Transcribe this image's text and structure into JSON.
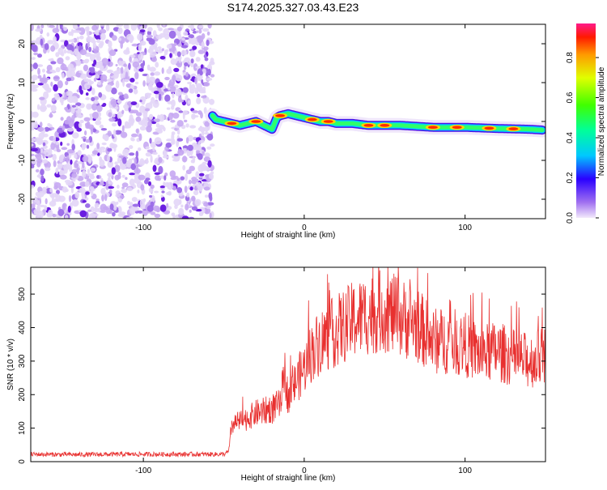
{
  "title": "S174.2025.327.03.43.E23",
  "chart_data": [
    {
      "type": "heatmap",
      "name": "spectrogram",
      "xlabel": "Height of straight line (km)",
      "ylabel": "Frequency (Hz)",
      "xlim": [
        -170,
        150
      ],
      "ylim": [
        -25,
        25
      ],
      "xticks": [
        -100,
        0,
        100
      ],
      "yticks": [
        -20,
        -10,
        0,
        10,
        20
      ],
      "colorbar": {
        "label": "Normalized spectral amplitude",
        "range": [
          0,
          0.97
        ],
        "ticks": [
          0.0,
          0.2,
          0.4,
          0.6,
          0.8
        ]
      },
      "signal_track": {
        "x": [
          -57,
          -55,
          -50,
          -45,
          -40,
          -35,
          -30,
          -25,
          -20,
          -17,
          -15,
          -10,
          -5,
          0,
          5,
          10,
          15,
          20,
          30,
          40,
          60,
          80,
          100,
          120,
          140,
          148
        ],
        "freq": [
          1.5,
          0.5,
          0,
          -0.5,
          -1,
          -0.5,
          0,
          -1,
          -2,
          1,
          1.5,
          2,
          1.5,
          1,
          0.5,
          0,
          0,
          -0.5,
          -0.5,
          -1,
          -1,
          -1.5,
          -1.5,
          -1.8,
          -2,
          -2.2
        ],
        "peak_x": [
          -45,
          -30,
          -15,
          5,
          15,
          40,
          50,
          80,
          95,
          115,
          130
        ]
      },
      "noise_region_xmax": -57
    },
    {
      "type": "line",
      "name": "snr",
      "xlabel": "Height of straight line (km)",
      "ylabel": "SNR (10 * v/v)",
      "xlim": [
        -170,
        150
      ],
      "ylim": [
        0,
        580
      ],
      "xticks": [
        -100,
        0,
        100
      ],
      "yticks": [
        0,
        100,
        200,
        300,
        400,
        500
      ],
      "color": "#e8302f",
      "series": [
        {
          "name": "SNR",
          "x": [
            -170,
            -140,
            -110,
            -80,
            -50,
            -47,
            -45,
            -40,
            -35,
            -30,
            -25,
            -20,
            -15,
            -12,
            -10,
            -5,
            0,
            5,
            10,
            20,
            30,
            40,
            50,
            60,
            70,
            80,
            90,
            100,
            110,
            120,
            130,
            140,
            150
          ],
          "y": [
            22,
            21,
            22,
            22,
            22,
            30,
            110,
            120,
            130,
            145,
            150,
            160,
            170,
            260,
            190,
            240,
            280,
            330,
            360,
            390,
            420,
            440,
            450,
            430,
            410,
            360,
            360,
            350,
            320,
            330,
            310,
            300,
            320
          ]
        }
      ]
    }
  ]
}
